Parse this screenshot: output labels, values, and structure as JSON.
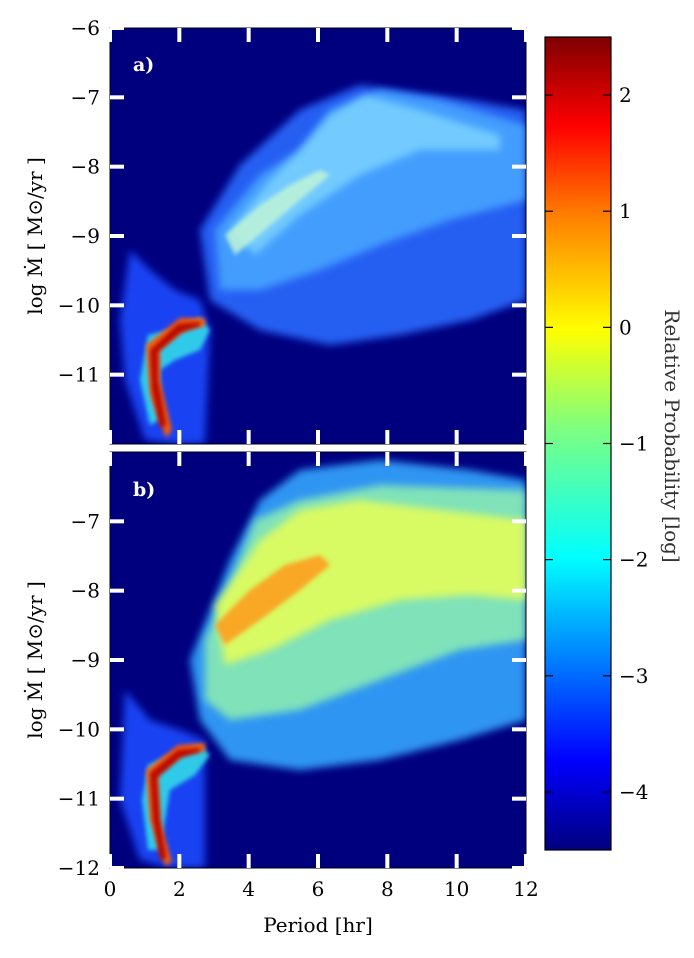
{
  "chart_data": [
    {
      "type": "heatmap",
      "panel_label": "a)",
      "ylabel": "log Ṁ  [ M⊙/yr ]",
      "xlim": [
        0,
        12
      ],
      "ylim": [
        -12,
        -6
      ],
      "y_ticks": [
        -6,
        -7,
        -8,
        -9,
        -10,
        -11
      ],
      "y_tick_labels": [
        "−6",
        "−7",
        "−8",
        "−9",
        "−10",
        "−11"
      ],
      "x_ticks": [
        0,
        2,
        4,
        6,
        8,
        10,
        12
      ],
      "background_color": "#00007f"
    },
    {
      "type": "heatmap",
      "panel_label": "b)",
      "xlabel": "Period [hr]",
      "ylabel": "log Ṁ  [ M⊙/yr ]",
      "xlim": [
        0,
        12
      ],
      "ylim": [
        -12,
        -6
      ],
      "y_ticks": [
        -7,
        -8,
        -9,
        -10,
        -11,
        -12
      ],
      "y_tick_labels": [
        "−7",
        "−8",
        "−9",
        "−10",
        "−11",
        "−12"
      ],
      "x_ticks": [
        0,
        2,
        4,
        6,
        8,
        10,
        12
      ],
      "x_tick_labels": [
        "0",
        "2",
        "4",
        "6",
        "8",
        "10",
        "12"
      ],
      "background_color": "#00007f"
    }
  ],
  "colorbar": {
    "label": "Relative Probability [log]",
    "range": [
      -4.5,
      2.5
    ],
    "ticks": [
      2,
      1,
      0,
      -1,
      -2,
      -3,
      -4
    ],
    "tick_labels": [
      "2",
      "1",
      "0",
      "−1",
      "−2",
      "−3",
      "−4"
    ],
    "colormap": "jet",
    "stops": [
      "#00007f",
      "#0000ff",
      "#007fff",
      "#00ffff",
      "#7fff7f",
      "#ffff00",
      "#ff7f00",
      "#ff0000",
      "#7f0000"
    ]
  }
}
